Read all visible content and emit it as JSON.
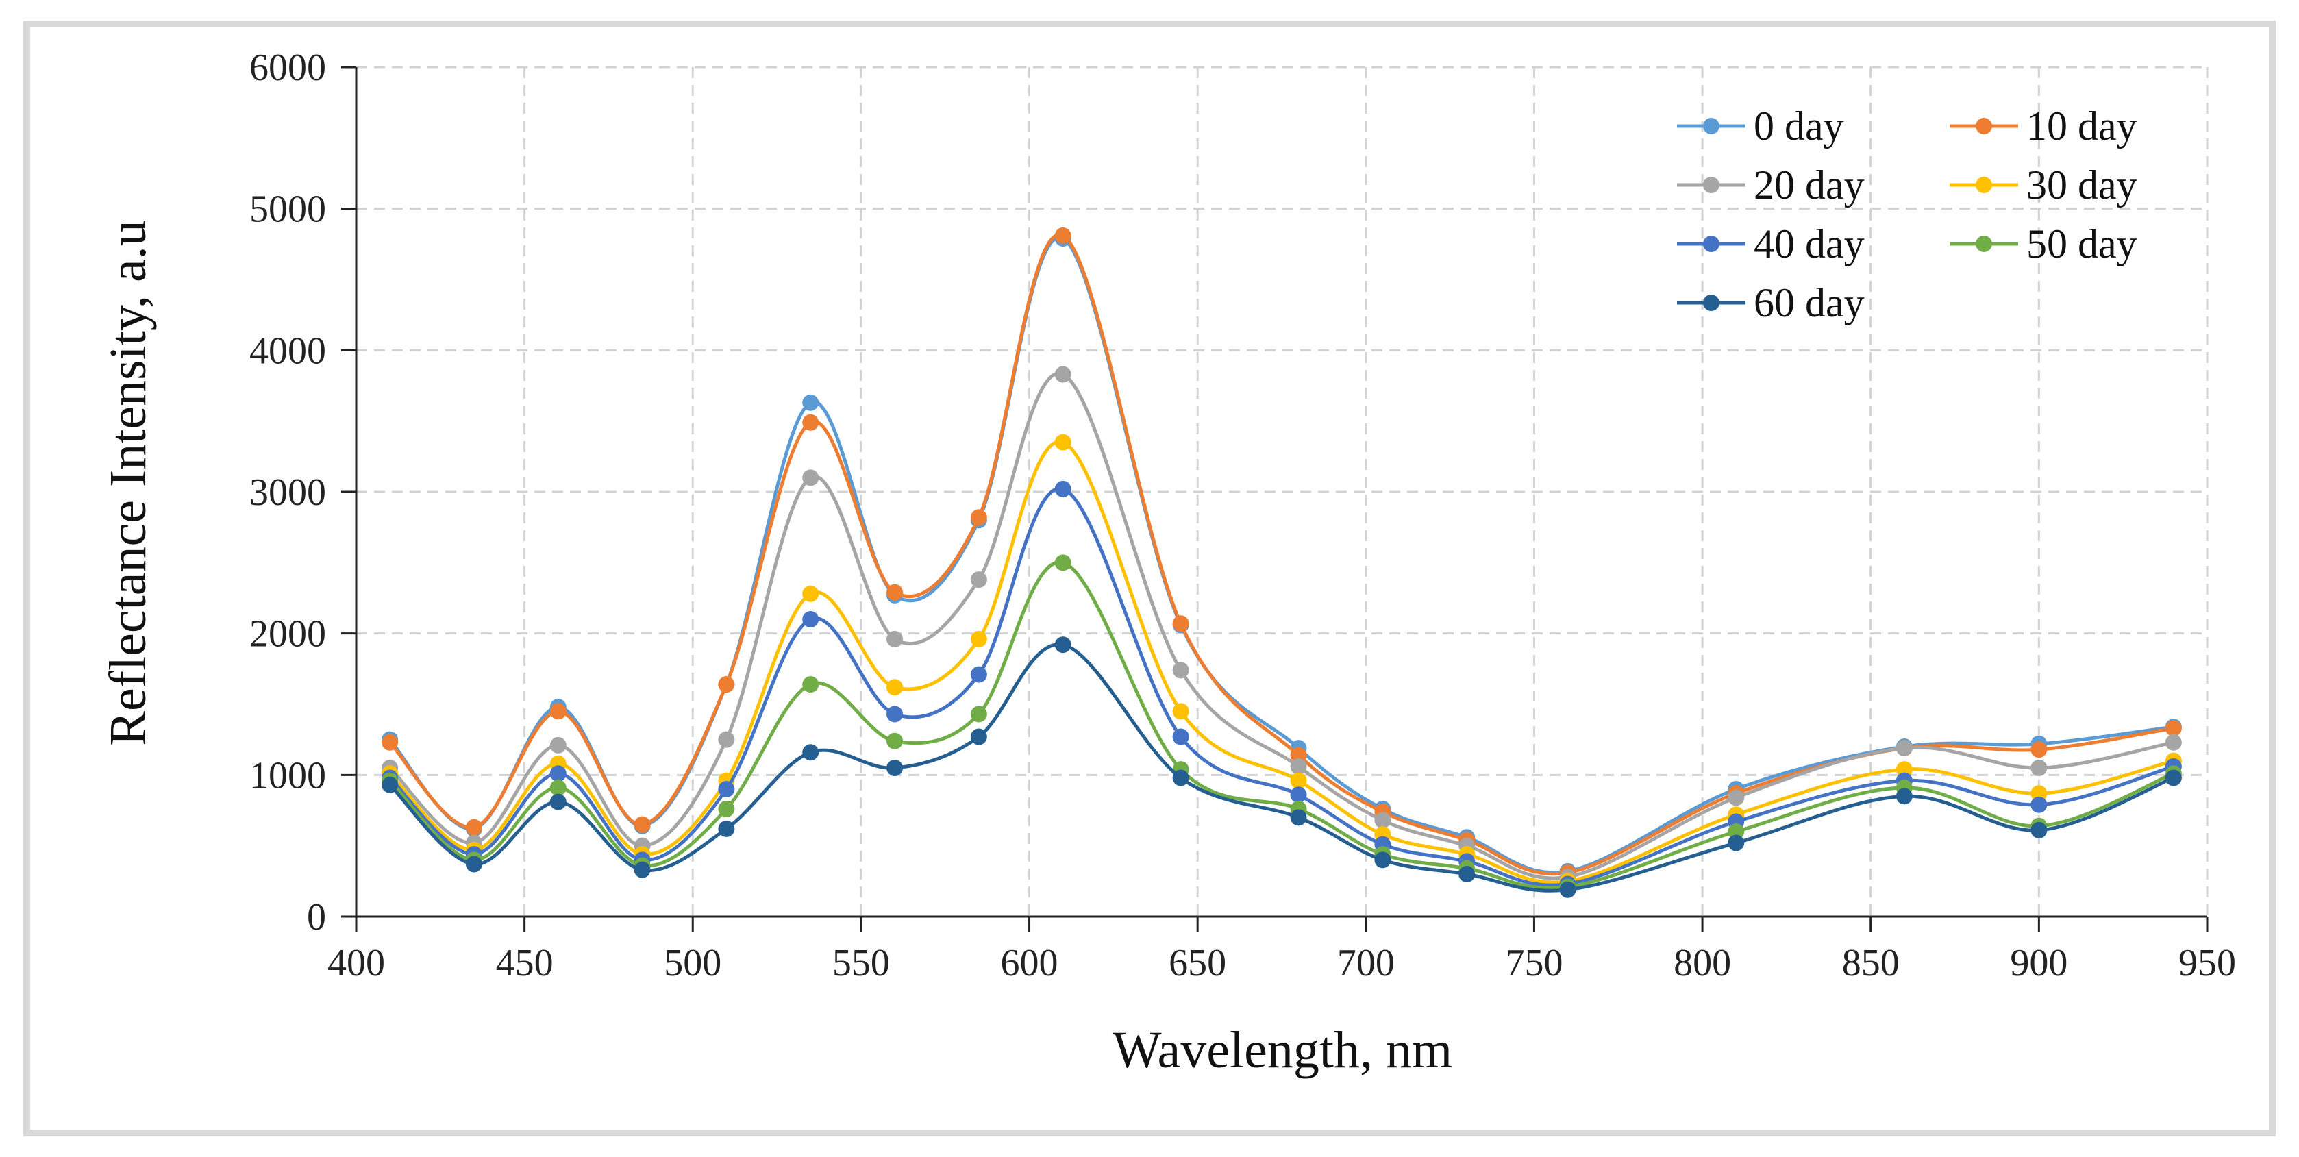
{
  "chart_data": {
    "type": "line",
    "title": "",
    "xlabel": "Wavelength, nm",
    "ylabel": "Reflectance Intensity, a.u",
    "xlim": [
      400,
      950
    ],
    "ylim": [
      0,
      6000
    ],
    "xticks": [
      400,
      450,
      500,
      550,
      600,
      650,
      700,
      750,
      800,
      850,
      900,
      950
    ],
    "yticks": [
      0,
      1000,
      2000,
      3000,
      4000,
      5000,
      6000
    ],
    "grid": true,
    "legend_position": "top-right",
    "x": [
      410,
      435,
      460,
      485,
      510,
      535,
      560,
      585,
      610,
      645,
      680,
      705,
      730,
      760,
      810,
      860,
      900,
      940
    ],
    "series": [
      {
        "name": "0 day",
        "color": "#5b9bd5",
        "values": [
          1250,
          620,
          1480,
          640,
          1640,
          3630,
          2270,
          2800,
          4790,
          2060,
          1190,
          760,
          560,
          320,
          900,
          1200,
          1220,
          1340
        ]
      },
      {
        "name": "10 day",
        "color": "#ed7d31",
        "values": [
          1230,
          630,
          1450,
          650,
          1640,
          3490,
          2290,
          2820,
          4810,
          2070,
          1140,
          740,
          540,
          310,
          870,
          1190,
          1180,
          1330
        ]
      },
      {
        "name": "20 day",
        "color": "#a5a5a5",
        "values": [
          1050,
          520,
          1210,
          500,
          1250,
          3100,
          1960,
          2380,
          3830,
          1740,
          1060,
          680,
          500,
          280,
          840,
          1190,
          1050,
          1230
        ]
      },
      {
        "name": "30 day",
        "color": "#ffc000",
        "values": [
          1010,
          470,
          1080,
          440,
          960,
          2280,
          1620,
          1960,
          3350,
          1450,
          960,
          580,
          440,
          250,
          720,
          1040,
          870,
          1100
        ]
      },
      {
        "name": "40 day",
        "color": "#4472c4",
        "values": [
          980,
          440,
          1010,
          400,
          900,
          2100,
          1430,
          1710,
          3020,
          1270,
          860,
          510,
          390,
          230,
          670,
          960,
          790,
          1060
        ]
      },
      {
        "name": "50 day",
        "color": "#70ad47",
        "values": [
          960,
          400,
          910,
          360,
          760,
          1640,
          1240,
          1430,
          2500,
          1040,
          760,
          440,
          340,
          210,
          600,
          910,
          640,
          1010
        ]
      },
      {
        "name": "60 day",
        "color": "#255e91",
        "values": [
          930,
          370,
          810,
          330,
          620,
          1160,
          1050,
          1270,
          1920,
          980,
          700,
          400,
          300,
          190,
          520,
          850,
          610,
          980
        ]
      }
    ]
  }
}
